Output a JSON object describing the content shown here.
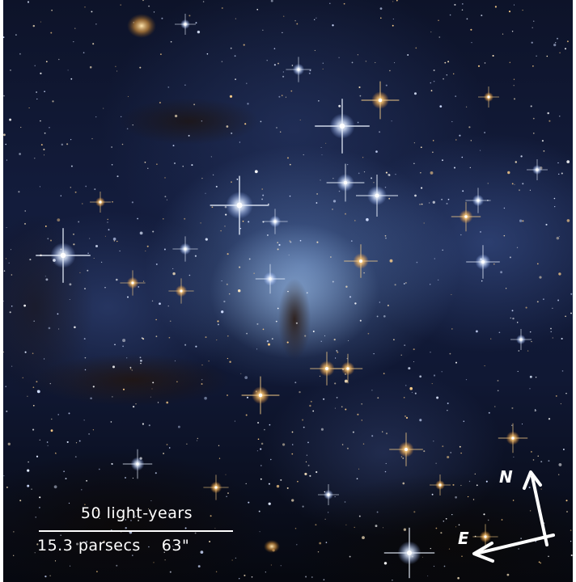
{
  "scale_bar": {
    "distance_label": "50 light-years",
    "parsec_label": "15.3 parsecs",
    "arcsec_label": "63\""
  },
  "compass": {
    "north_label": "N",
    "east_label": "E"
  },
  "colors": {
    "annotation": "#ffffff",
    "nebula_blue": "#6f96d7",
    "star_gold": "#ffc46a"
  }
}
